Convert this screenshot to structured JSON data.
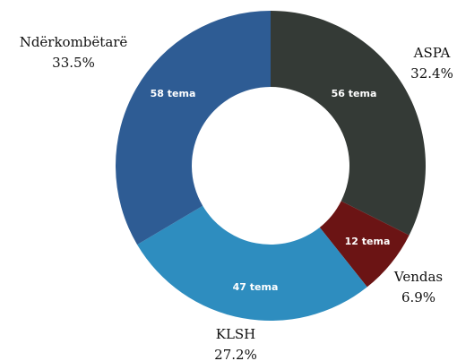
{
  "chart_data": {
    "type": "donut",
    "categories": [
      "ASPA",
      "Vendas",
      "KLSH",
      "Ndërkombëtarë"
    ],
    "values": [
      32.4,
      6.9,
      27.2,
      33.5
    ],
    "value_labels": [
      "32.4%",
      "6.9%",
      "27.2%",
      "33.5%"
    ],
    "segment_labels": [
      "56 tema",
      "12 tema",
      "47 tema",
      "58 tema"
    ],
    "colors": [
      "#343a36",
      "#6b1414",
      "#2e8dbf",
      "#2e5c94"
    ]
  }
}
